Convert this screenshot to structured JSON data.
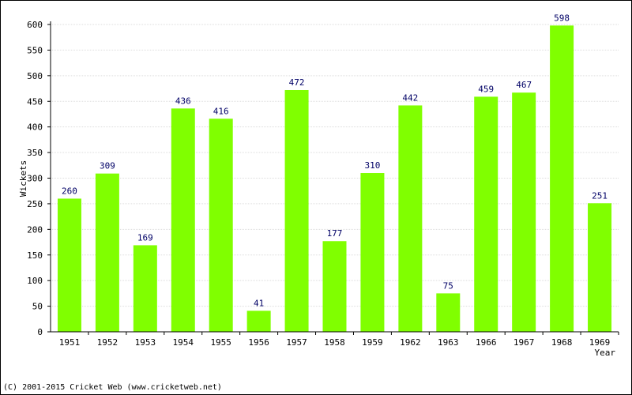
{
  "chart_data": {
    "type": "bar",
    "categories": [
      "1951",
      "1952",
      "1953",
      "1954",
      "1955",
      "1956",
      "1957",
      "1958",
      "1959",
      "1962",
      "1963",
      "1966",
      "1967",
      "1968",
      "1969"
    ],
    "values": [
      260,
      309,
      169,
      436,
      416,
      41,
      472,
      177,
      310,
      442,
      75,
      459,
      467,
      598,
      251
    ],
    "data_labels": [
      "260",
      "309",
      "169",
      "436",
      "416",
      "41",
      "472",
      "177",
      "310",
      "442",
      "75",
      "459",
      "467",
      "598",
      "251"
    ],
    "xlabel": "Year",
    "ylabel": "Wickets",
    "ylim": [
      0,
      600
    ],
    "yticks": [
      0,
      50,
      100,
      150,
      200,
      250,
      300,
      350,
      400,
      450,
      500,
      550,
      600
    ],
    "ytick_labels": [
      "0",
      "50",
      "100",
      "150",
      "200",
      "250",
      "300",
      "350",
      "400",
      "450",
      "500",
      "550",
      "600"
    ],
    "grid": true,
    "bar_color": "#80ff00"
  },
  "footer": {
    "copyright": "(C) 2001-2015 Cricket Web (www.cricketweb.net)"
  }
}
